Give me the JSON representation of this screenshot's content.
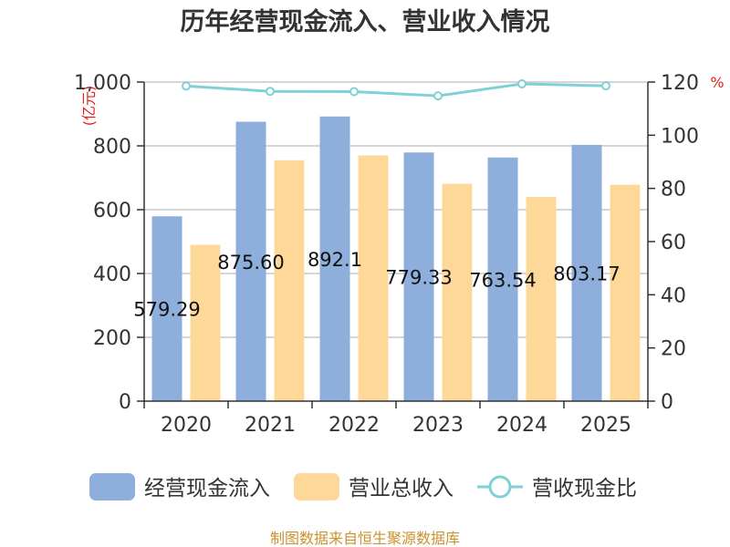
{
  "source_text": "制图数据来自恒生聚源数据库",
  "chart_data": {
    "type": "bar",
    "title": "历年经营现金流入、营业收入情况",
    "categories": [
      "2020",
      "2021",
      "2022",
      "2023",
      "2024",
      "2025"
    ],
    "series": [
      {
        "name": "经营现金流入",
        "kind": "bar",
        "axis": "left",
        "color": "#8eaedb",
        "values": [
          579.29,
          875.6,
          892.1,
          779.33,
          763.54,
          803.17
        ],
        "labels": [
          "579.29",
          "875.60",
          "892.1",
          "779.33",
          "763.54",
          "803.17"
        ]
      },
      {
        "name": "营业总收入",
        "kind": "bar",
        "axis": "left",
        "color": "#fdd899",
        "values": [
          490,
          755,
          770,
          681,
          640,
          678
        ]
      },
      {
        "name": "营收现金比",
        "kind": "line",
        "axis": "right",
        "color": "#7fd1d6",
        "values": [
          118.5,
          116.5,
          116.4,
          114.8,
          119.3,
          118.6
        ]
      }
    ],
    "ylim_left": [
      0,
      1000
    ],
    "yticks_left": [
      0,
      200,
      400,
      600,
      800,
      1000
    ],
    "ytick_labels_left": [
      "0",
      "200",
      "400",
      "600",
      "800",
      "1,000"
    ],
    "ylabel_left": "(亿元)",
    "ylim_right": [
      0,
      120
    ],
    "yticks_right": [
      0,
      20,
      40,
      60,
      80,
      100,
      120
    ],
    "ytick_labels_right": [
      "0",
      "20",
      "40",
      "60",
      "80",
      "100",
      "120"
    ],
    "ylabel_right": "%",
    "grid": true,
    "legend_position": "bottom"
  }
}
